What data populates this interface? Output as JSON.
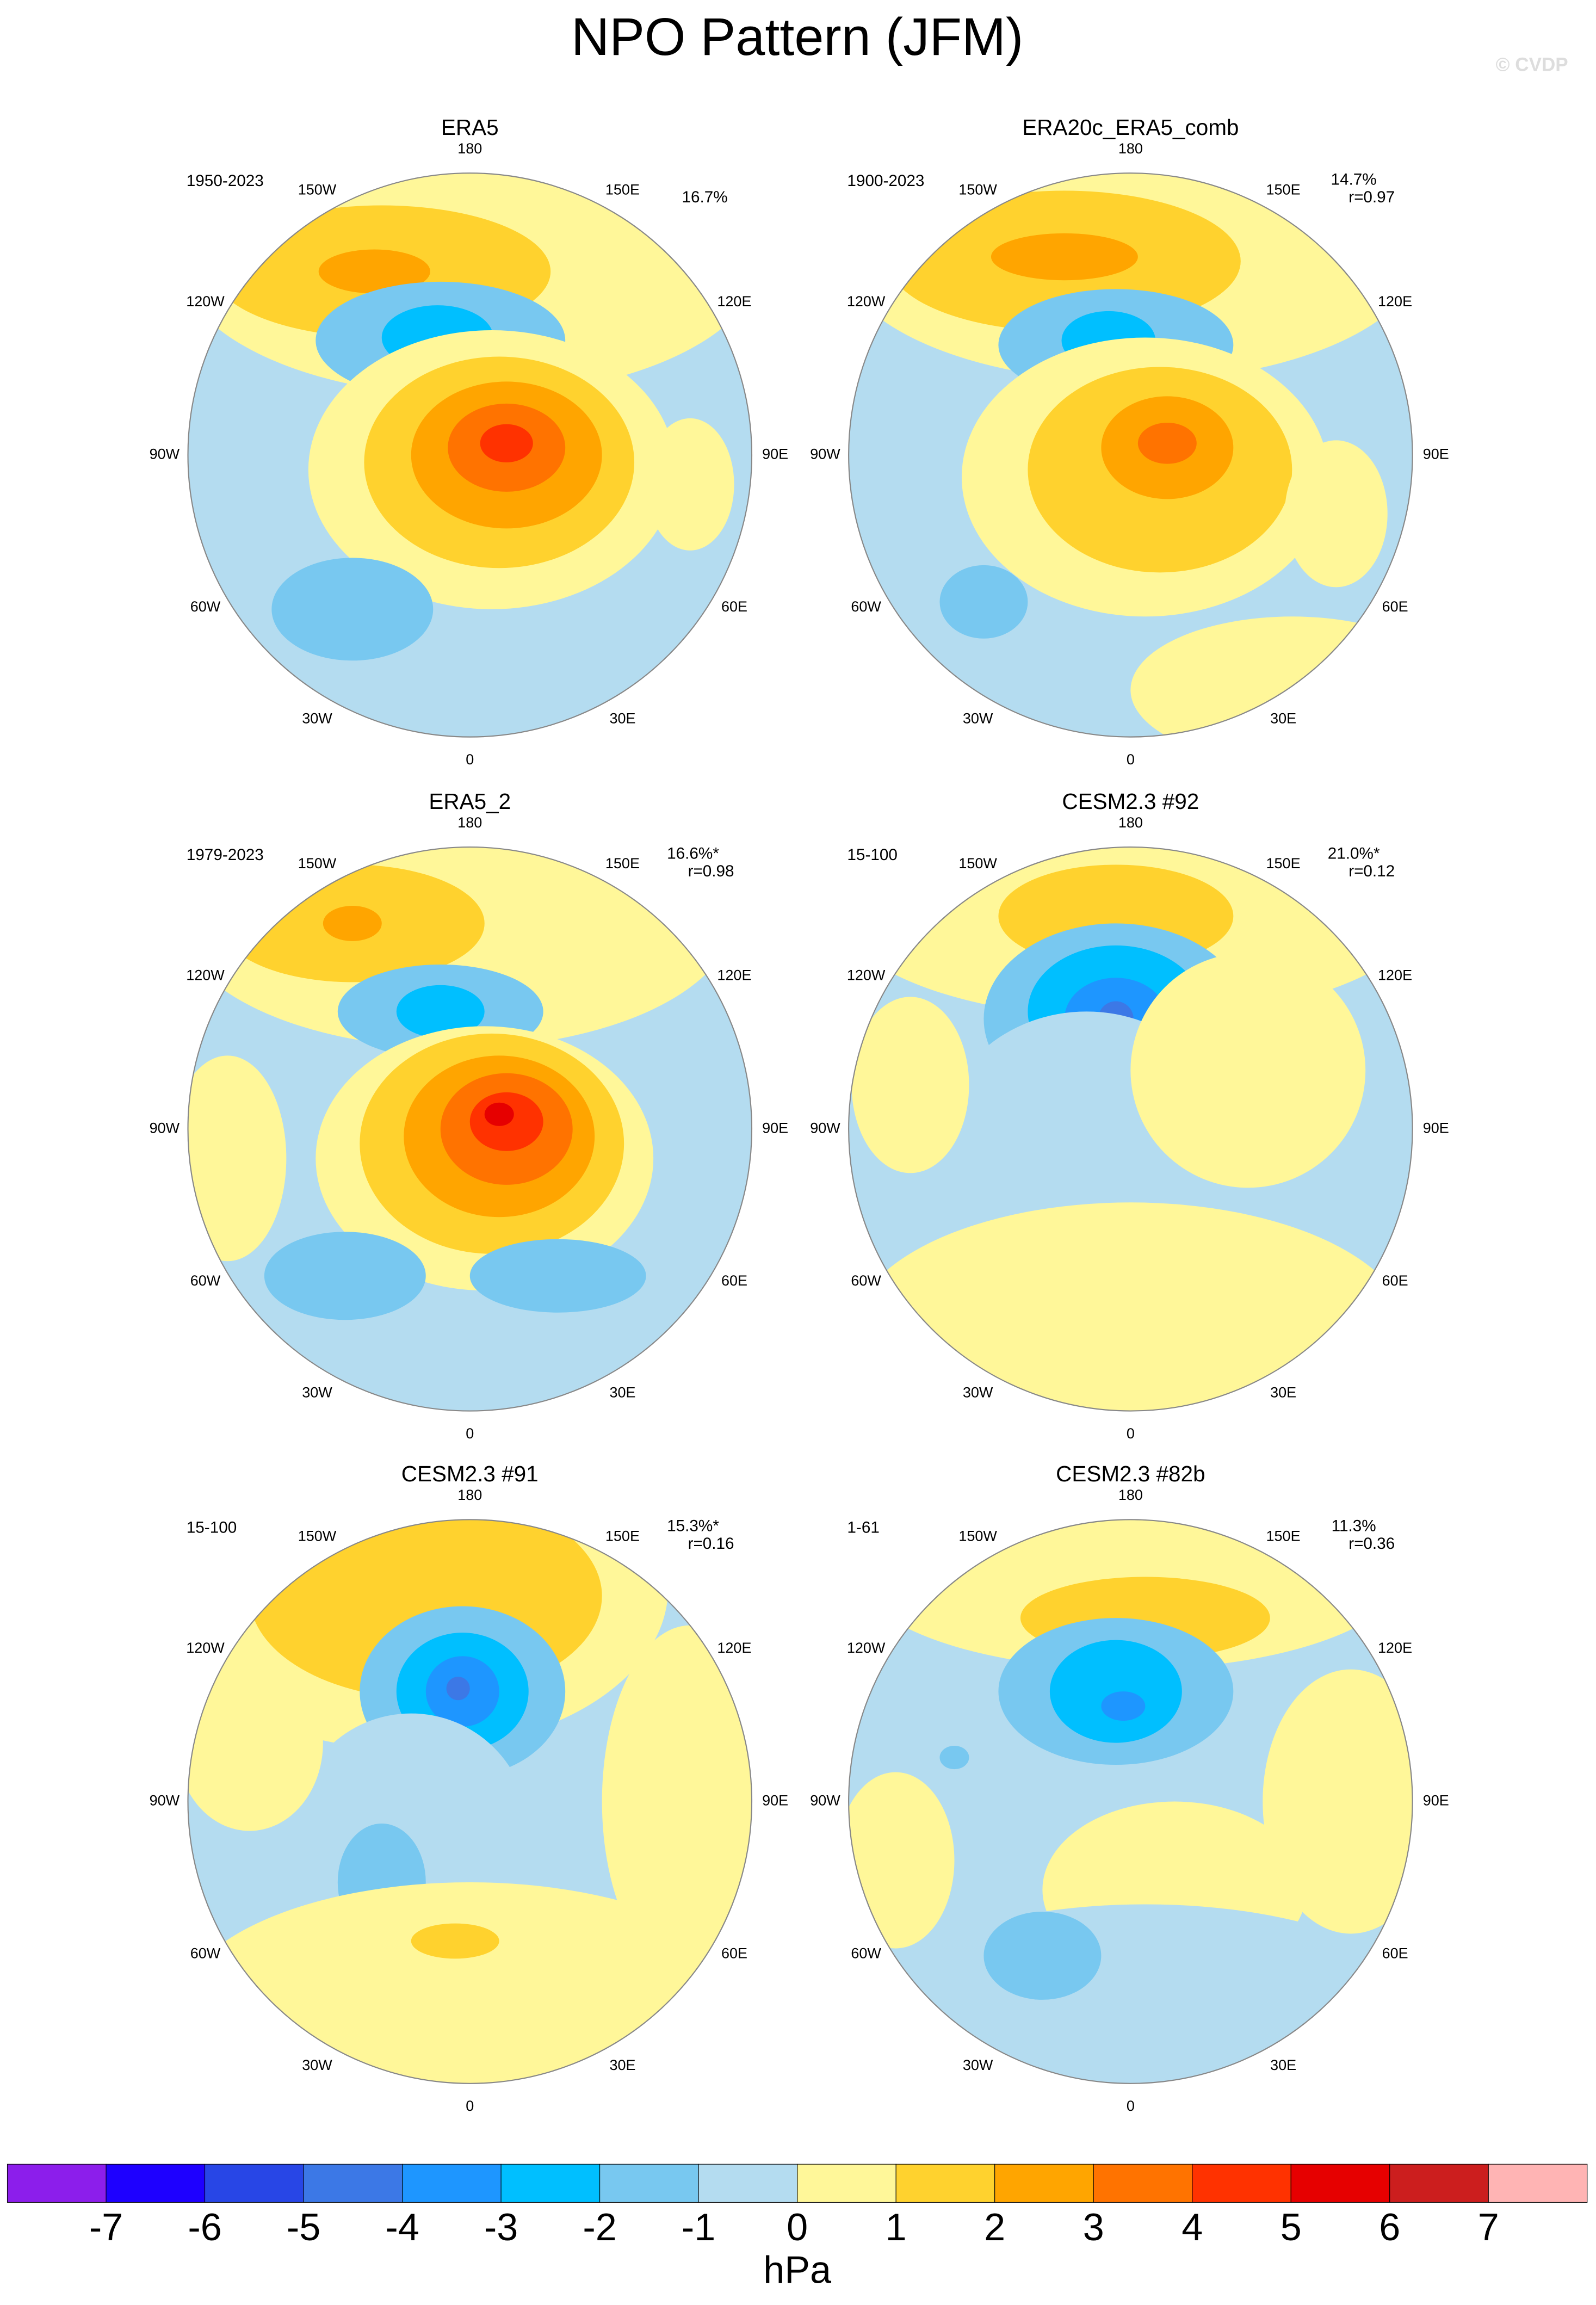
{
  "title": "NPO Pattern (JFM)",
  "watermark": "© CVDP",
  "longitude_labels": [
    "180",
    "150E",
    "120E",
    "90E",
    "60E",
    "30E",
    "0",
    "30W",
    "60W",
    "90W",
    "120W",
    "150W"
  ],
  "panels": [
    {
      "title": "ERA5",
      "period": "1950-2023",
      "variance": "16.7%"
    },
    {
      "title": "ERA20c_ERA5_comb",
      "period": "1900-2023",
      "variance": "14.7%",
      "correlation": "r=0.97"
    },
    {
      "title": "ERA5_2",
      "period": "1979-2023",
      "variance": "16.6%*",
      "correlation": "r=0.98"
    },
    {
      "title": "CESM2.3 #92",
      "period": "15-100",
      "variance": "21.0%*",
      "correlation": "r=0.12"
    },
    {
      "title": "CESM2.3 #91",
      "period": "15-100",
      "variance": "15.3%*",
      "correlation": "r=0.16"
    },
    {
      "title": "CESM2.3 #82b",
      "period": "1-61",
      "variance": "11.3%",
      "correlation": "r=0.36"
    }
  ],
  "colorbar": {
    "levels": [
      "-7",
      "-6",
      "-5",
      "-4",
      "-3",
      "-2",
      "-1",
      "0",
      "1",
      "2",
      "3",
      "4",
      "5",
      "6",
      "7"
    ],
    "colors": [
      "#8c1eeb",
      "#1e00ff",
      "#2846e6",
      "#3c78e6",
      "#1e96ff",
      "#00bfff",
      "#78c8f0",
      "#b4dcf0",
      "#fff799",
      "#ffd22e",
      "#ffa500",
      "#ff7300",
      "#ff3200",
      "#e60000",
      "#cc1e1e",
      "#ffb4b4"
    ],
    "unit": "hPa"
  }
}
